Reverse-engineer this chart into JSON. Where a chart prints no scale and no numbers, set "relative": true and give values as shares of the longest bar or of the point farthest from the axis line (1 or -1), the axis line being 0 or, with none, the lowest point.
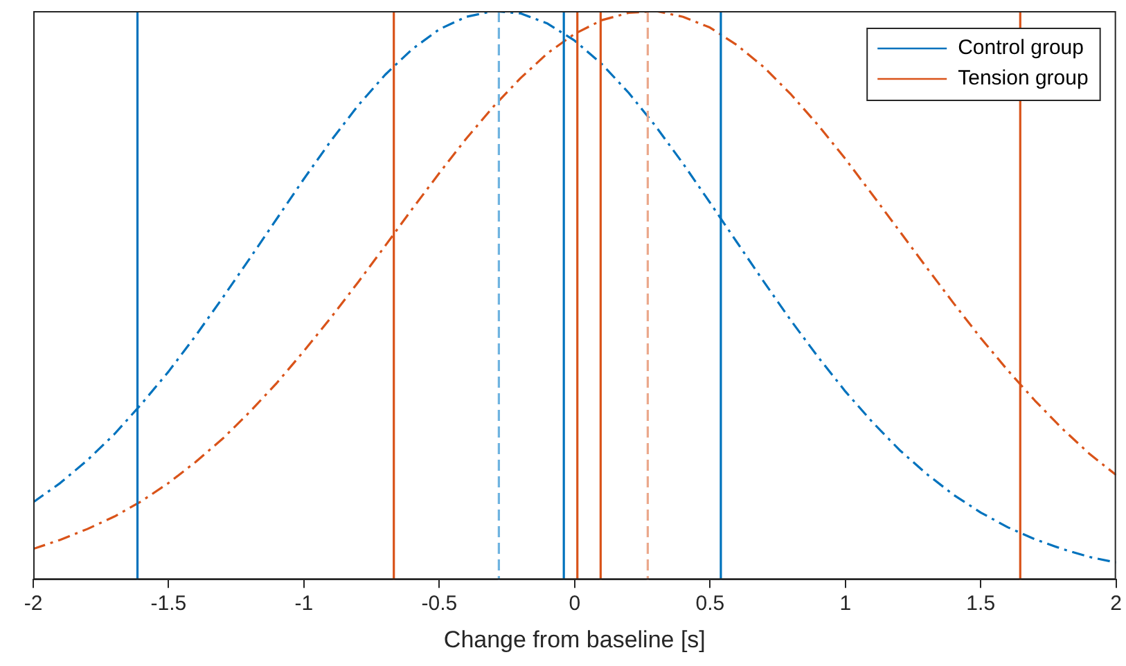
{
  "chart_data": {
    "type": "line",
    "relative": true,
    "xlabel": "Change from baseline [s]",
    "xlim": [
      -2,
      2
    ],
    "xticks": [
      -2,
      -1.5,
      -1,
      -0.5,
      0,
      0.5,
      1,
      1.5,
      2
    ],
    "tick_labels": "x",
    "grid": false,
    "legend": "top right",
    "marker": "none",
    "line_style": "dashed",
    "x": [
      -2,
      -1.9,
      -1.8,
      -1.7,
      -1.6,
      -1.5,
      -1.4,
      -1.3,
      -1.2,
      -1.1,
      -1,
      -0.9,
      -0.8,
      -0.7,
      -0.6,
      -0.5,
      -0.4,
      -0.3,
      -0.2,
      -0.1,
      0,
      0.1,
      0.2,
      0.3,
      0.4,
      0.5,
      0.6,
      0.7,
      0.8,
      0.9,
      1,
      1.1,
      1.2,
      1.3,
      1.4,
      1.5,
      1.6,
      1.7,
      1.8,
      1.9,
      2
    ],
    "series": [
      {
        "name": "Control group",
        "color": "#0072bd",
        "values": [
          0.136,
          0.17,
          0.21,
          0.256,
          0.309,
          0.366,
          0.429,
          0.496,
          0.565,
          0.635,
          0.705,
          0.772,
          0.834,
          0.888,
          0.933,
          0.968,
          0.99,
          1,
          0.996,
          0.978,
          0.948,
          0.907,
          0.856,
          0.797,
          0.732,
          0.663,
          0.593,
          0.523,
          0.455,
          0.391,
          0.331,
          0.277,
          0.228,
          0.186,
          0.149,
          0.118,
          0.092,
          0.071,
          0.054,
          0.04,
          0.03
        ]
      },
      {
        "name": "Tension group",
        "color": "#d95319",
        "values": [
          0.054,
          0.07,
          0.089,
          0.111,
          0.138,
          0.17,
          0.207,
          0.248,
          0.295,
          0.346,
          0.402,
          0.461,
          0.523,
          0.587,
          0.652,
          0.715,
          0.776,
          0.832,
          0.882,
          0.926,
          0.96,
          0.984,
          0.997,
          1,
          0.99,
          0.971,
          0.94,
          0.901,
          0.853,
          0.799,
          0.74,
          0.677,
          0.613,
          0.549,
          0.486,
          0.425,
          0.368,
          0.315,
          0.266,
          0.222,
          0.184
        ]
      }
    ],
    "ref_lines": [
      {
        "axis": "x",
        "value": -1.615,
        "color": "#0072bd",
        "line_style": "solid"
      },
      {
        "axis": "x",
        "value": -0.04,
        "color": "#0072bd",
        "line_style": "solid"
      },
      {
        "axis": "x",
        "value": 0.54,
        "color": "#0072bd",
        "line_style": "solid"
      },
      {
        "axis": "x",
        "value": -0.668,
        "color": "#d95319",
        "line_style": "solid"
      },
      {
        "axis": "x",
        "value": 0.01,
        "color": "#d95319",
        "line_style": "solid"
      },
      {
        "axis": "x",
        "value": 0.096,
        "color": "#d95319",
        "line_style": "solid"
      },
      {
        "axis": "x",
        "value": 1.646,
        "color": "#d95319",
        "line_style": "solid"
      },
      {
        "axis": "x",
        "value": -0.28,
        "color": "#6fb3e0",
        "line_style": "dashed"
      },
      {
        "axis": "x",
        "value": 0.27,
        "color": "#eba88c",
        "line_style": "dashed"
      }
    ]
  }
}
